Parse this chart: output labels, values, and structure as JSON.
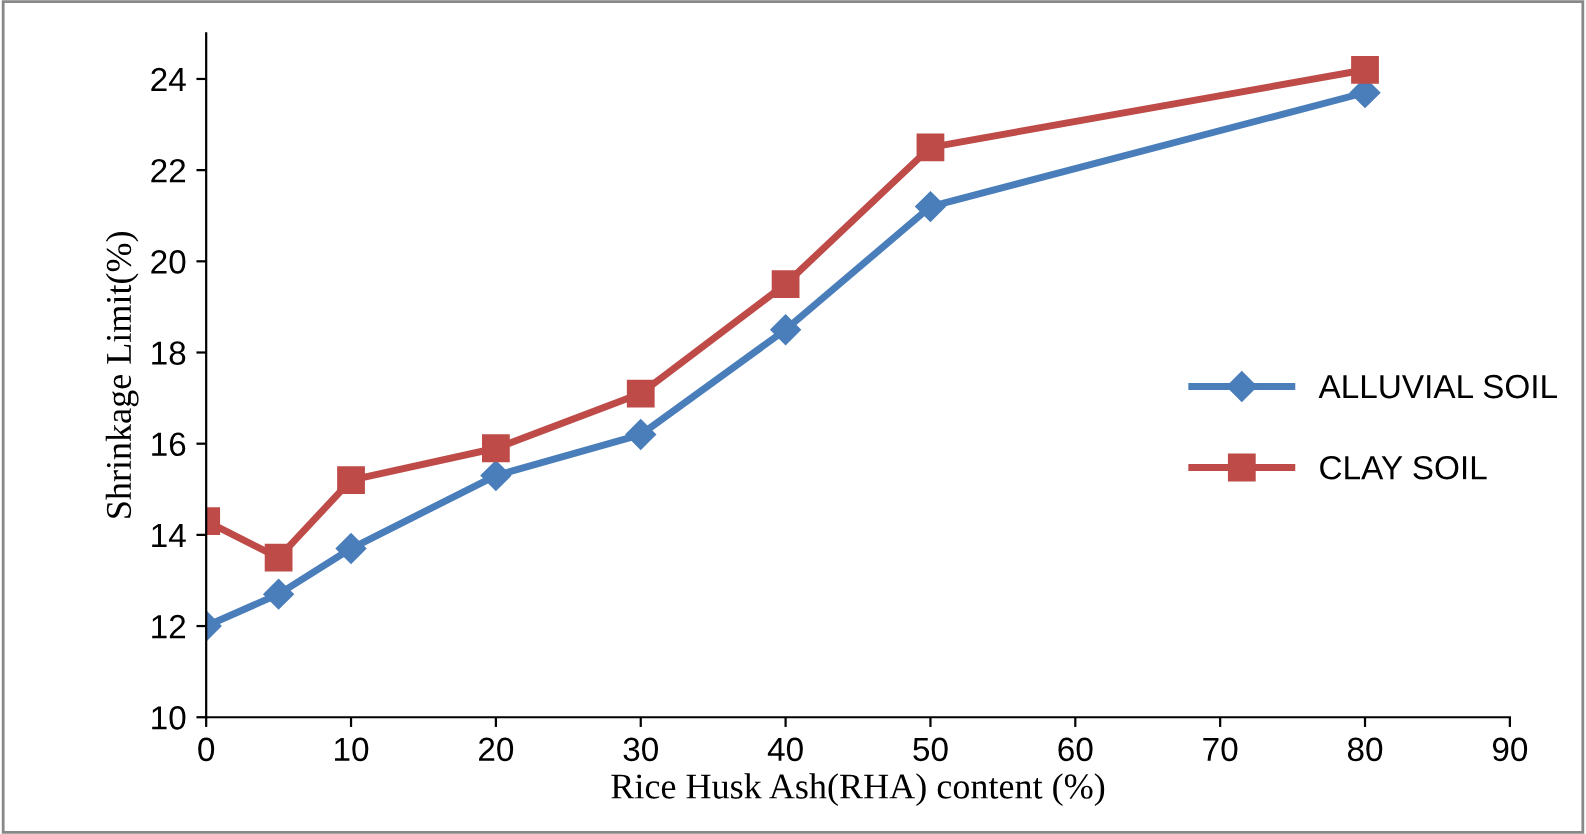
{
  "chart_data": {
    "type": "line",
    "xlabel": "Rice Husk Ash(RHA) content (%)",
    "ylabel": "Shrinkage Limit(%)",
    "x": [
      0,
      5,
      10,
      20,
      30,
      40,
      50,
      80
    ],
    "series": [
      {
        "name": "ALLUVIAL SOIL",
        "color": "#4a7ebb",
        "marker": "diamond",
        "values": [
          12.0,
          12.7,
          13.7,
          15.3,
          16.2,
          18.5,
          21.2,
          23.7
        ]
      },
      {
        "name": "CLAY SOIL",
        "color": "#be4b48",
        "marker": "square",
        "values": [
          14.3,
          13.5,
          15.2,
          15.9,
          17.1,
          19.5,
          22.5,
          24.2
        ]
      }
    ],
    "xlim": [
      0,
      90
    ],
    "xticks": [
      0,
      10,
      20,
      30,
      40,
      50,
      60,
      70,
      80,
      90
    ],
    "ylim": [
      10,
      25
    ],
    "yticks": [
      10,
      12,
      14,
      16,
      18,
      20,
      22,
      24
    ],
    "grid": false,
    "legend": "right",
    "line_style": "solid"
  }
}
